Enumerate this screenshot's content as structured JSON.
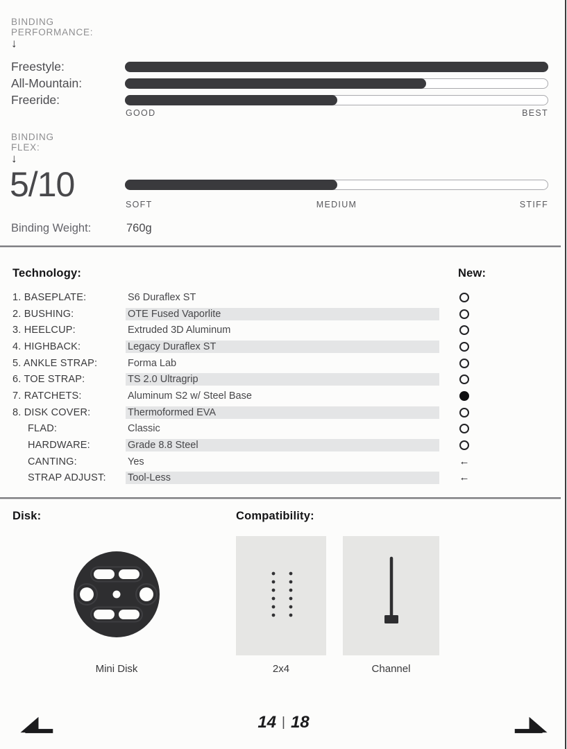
{
  "colors": {
    "bar-fill": "#3a3a3d",
    "band": "#e4e5e6",
    "disk-dark": "#2e2e30"
  },
  "performance": {
    "heading_line1": "BINDING",
    "heading_line2": "PERFORMANCE:",
    "arrow_icon": "↓",
    "rows": [
      {
        "label": "Freestyle:",
        "percent": 100
      },
      {
        "label": "All-Mountain:",
        "percent": 71
      },
      {
        "label": "Freeride:",
        "percent": 50
      }
    ],
    "scale_min": "GOOD",
    "scale_max": "BEST"
  },
  "flex": {
    "heading_line1": "BINDING",
    "heading_line2": "FLEX:",
    "arrow_icon": "↓",
    "rating": "5/10",
    "percent": 50,
    "scale_min": "SOFT",
    "scale_mid": "MEDIUM",
    "scale_max": "STIFF"
  },
  "weight": {
    "label": "Binding Weight:",
    "value": "760g"
  },
  "technology": {
    "heading": "Technology:",
    "new_heading": "New:",
    "arrow_glyph": "←",
    "rows": [
      {
        "label": "1. BASEPLATE:",
        "value": "S6 Duraflex ST",
        "marker": "open"
      },
      {
        "label": "2. BUSHING:",
        "value": "OTE Fused Vaporlite",
        "marker": "open"
      },
      {
        "label": "3. HEELCUP:",
        "value": "Extruded 3D Aluminum",
        "marker": "open"
      },
      {
        "label": "4. HIGHBACK:",
        "value": "Legacy Duraflex ST",
        "marker": "open"
      },
      {
        "label": "5. ANKLE STRAP:",
        "value": "Forma Lab",
        "marker": "open"
      },
      {
        "label": "6. TOE STRAP:",
        "value": "TS 2.0 Ultragrip",
        "marker": "open"
      },
      {
        "label": "7. RATCHETS:",
        "value": "Aluminum S2 w/ Steel Base",
        "marker": "filled"
      },
      {
        "label": "8. DISK COVER:",
        "value": "Thermoformed EVA",
        "marker": "open"
      },
      {
        "label": "FLAD:",
        "value": "Classic",
        "marker": "open"
      },
      {
        "label": "HARDWARE:",
        "value": "Grade 8.8 Steel",
        "marker": "open"
      },
      {
        "label": "CANTING:",
        "value": "Yes",
        "marker": "arrow"
      },
      {
        "label": "STRAP ADJUST:",
        "value": "Tool-Less",
        "marker": "arrow"
      }
    ]
  },
  "disk": {
    "heading": "Disk:",
    "caption": "Mini Disk"
  },
  "compatibility": {
    "heading": "Compatibility:",
    "items": [
      {
        "caption": "2x4"
      },
      {
        "caption": "Channel"
      }
    ]
  },
  "footer": {
    "current_page": "14",
    "separator": "|",
    "total_pages": "18"
  }
}
